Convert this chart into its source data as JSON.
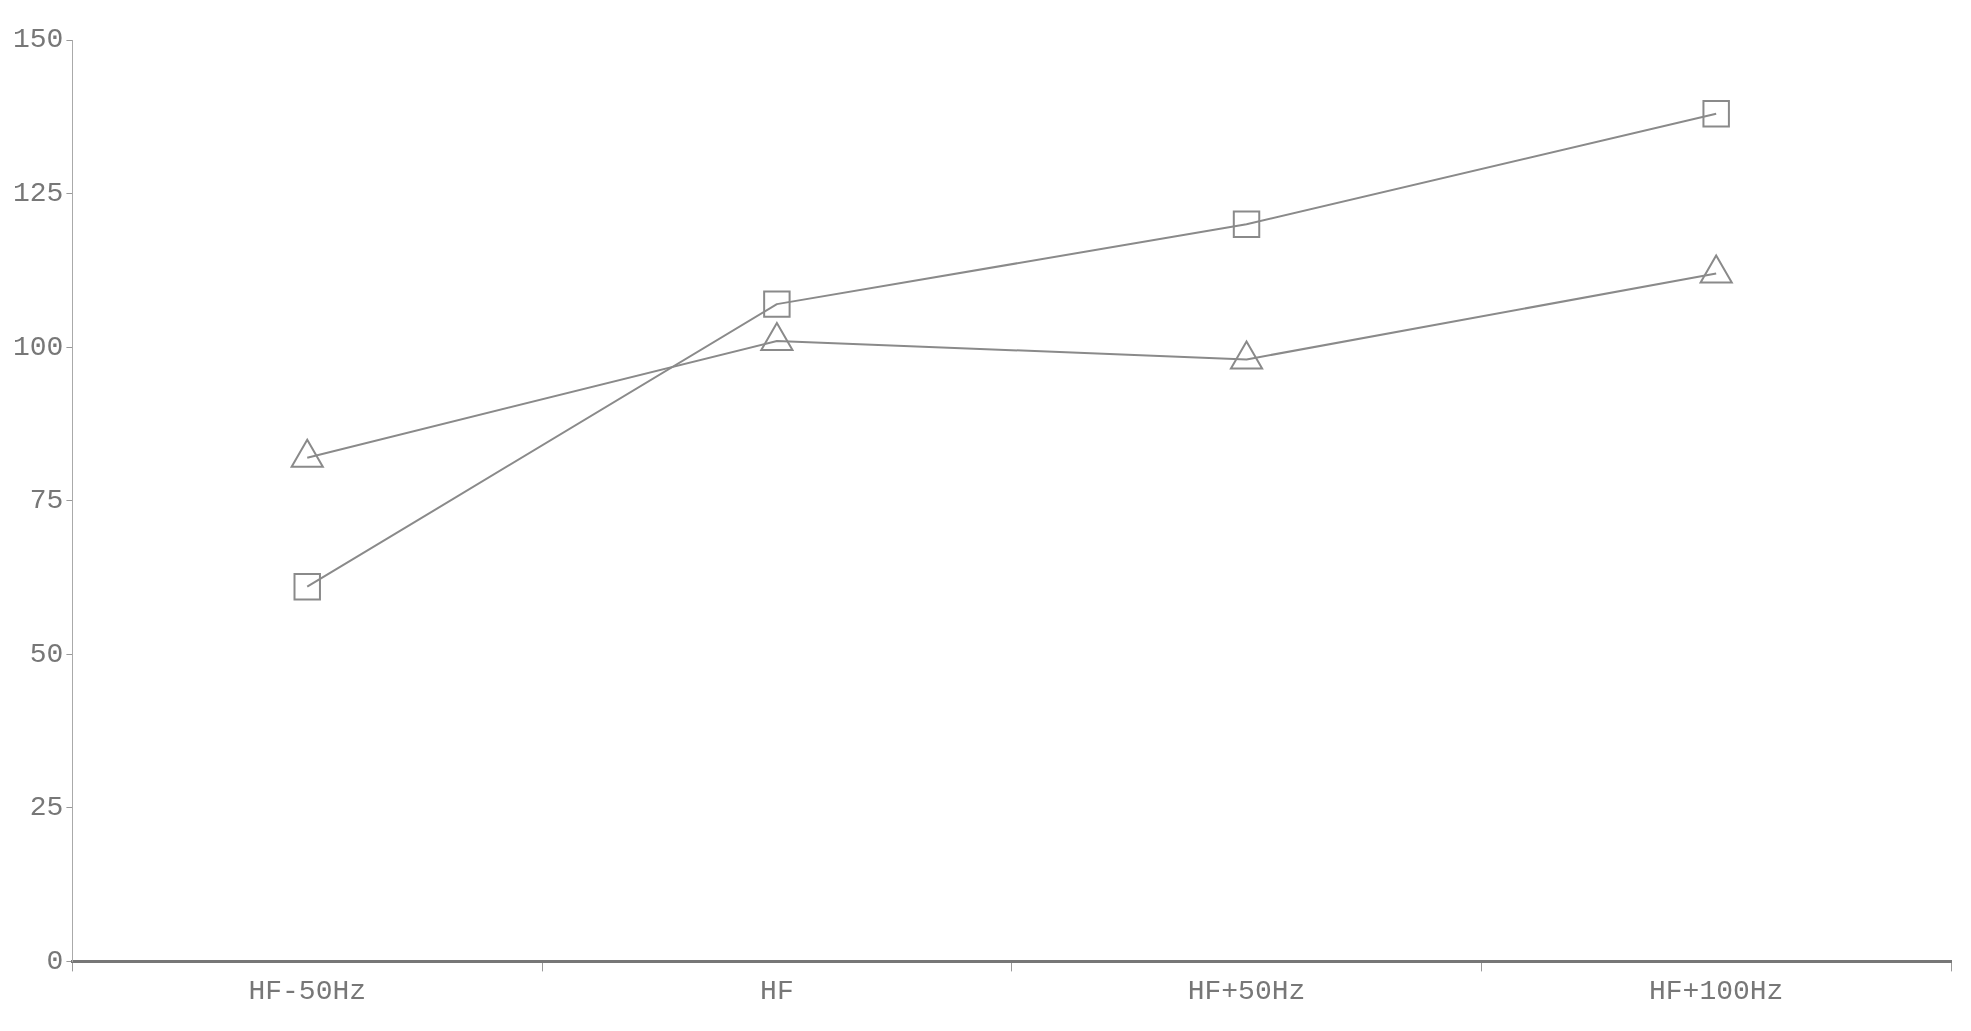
{
  "chart_data": {
    "type": "line",
    "categories": [
      "HF-50Hz",
      "HF",
      "HF+50Hz",
      "HF+100Hz"
    ],
    "series": [
      {
        "color": "#8a8a8a",
        "marker": "square",
        "values": [
          61,
          107,
          120,
          138
        ]
      },
      {
        "color": "#8a8a8a",
        "marker": "triangle",
        "values": [
          82,
          101,
          98,
          112
        ]
      }
    ],
    "ylim": [
      0,
      150
    ],
    "yticks": [
      0,
      25,
      50,
      75,
      100,
      125,
      150
    ],
    "grid": false,
    "legend": false
  }
}
